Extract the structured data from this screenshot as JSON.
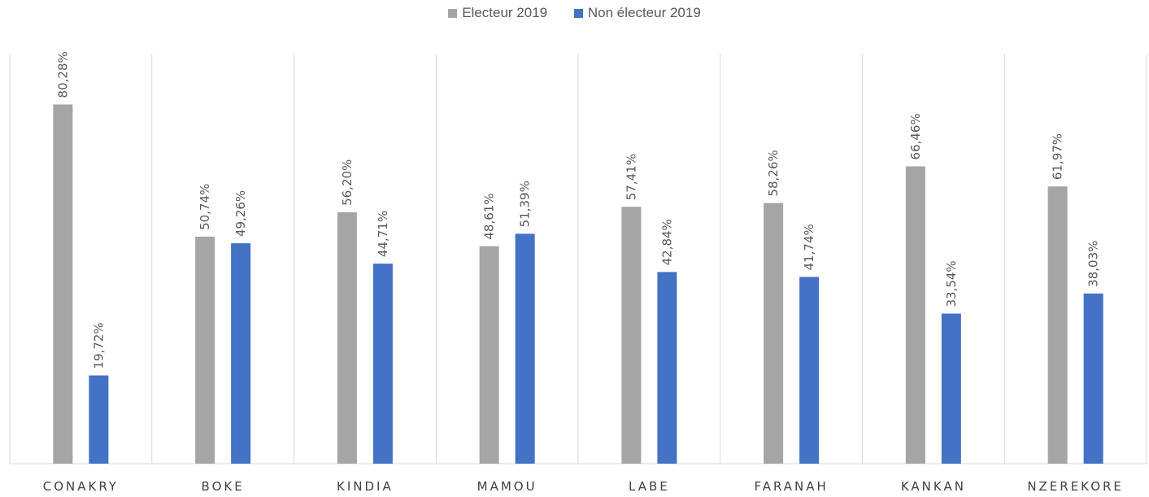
{
  "chart_data": {
    "type": "bar",
    "title": "",
    "xlabel": "",
    "ylabel": "",
    "ylim": [
      0,
      100
    ],
    "legend_position": "top-center",
    "grid": false,
    "categories": [
      "CONAKRY",
      "BOKE",
      "KINDIA",
      "MAMOU",
      "LABE",
      "FARANAH",
      "KANKAN",
      "NZEREKORE"
    ],
    "series": [
      {
        "name": "Electeur 2019",
        "color": "#a5a5a5",
        "values": [
          80.28,
          50.74,
          56.2,
          48.61,
          57.41,
          58.26,
          66.46,
          61.97
        ],
        "labels": [
          "80,28%",
          "50,74%",
          "56,20%",
          "48,61%",
          "57,41%",
          "58,26%",
          "66,46%",
          "61,97%"
        ]
      },
      {
        "name": "Non électeur 2019",
        "color": "#4472c4",
        "values": [
          19.72,
          49.26,
          44.71,
          51.39,
          42.84,
          41.74,
          33.54,
          38.03
        ],
        "labels": [
          "19,72%",
          "49,26%",
          "44,71%",
          "51,39%",
          "42,84%",
          "41,74%",
          "33,54%",
          "38,03%"
        ]
      }
    ]
  }
}
